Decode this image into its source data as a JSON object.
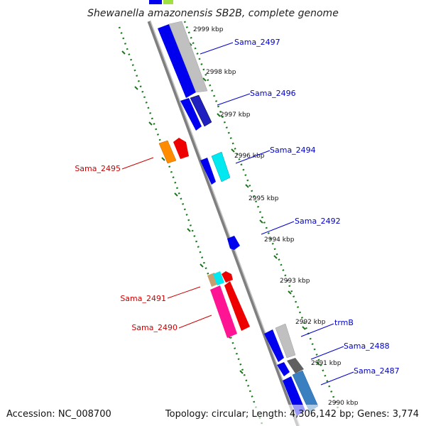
{
  "title": "Shewanella amazonensis SB2B, complete genome",
  "footer": {
    "accession": "Accession: NC_008700",
    "topology": "Topology: circular; Length: 4,306,142 bp; Genes: 3,774"
  },
  "ticks": [
    "2999 kbp",
    "2998 kbp",
    "2997 kbp",
    "2996 kbp",
    "2995 kbp",
    "2994 kbp",
    "2993 kbp",
    "2992 kbp",
    "2991 kbp",
    "2990 kbp"
  ],
  "genes": [
    {
      "name": "Sama_2497",
      "color": "#0000cc"
    },
    {
      "name": "Sama_2496",
      "color": "#0000cc"
    },
    {
      "name": "Sama_2494",
      "color": "#0000cc"
    },
    {
      "name": "Sama_2492",
      "color": "#0000cc"
    },
    {
      "name": "trmB",
      "color": "#0000cc"
    },
    {
      "name": "Sama_2488",
      "color": "#0000cc"
    },
    {
      "name": "Sama_2487",
      "color": "#0000cc"
    },
    {
      "name": "Sama_2495",
      "color": "#cc0000"
    },
    {
      "name": "Sama_2491",
      "color": "#cc0000"
    },
    {
      "name": "Sama_2490",
      "color": "#cc0000"
    }
  ],
  "colors": {
    "backbone": "#808080",
    "ruler": "#1a7a1a",
    "forward_cds": "#0000ee",
    "reverse_cds": "#ee0000"
  }
}
